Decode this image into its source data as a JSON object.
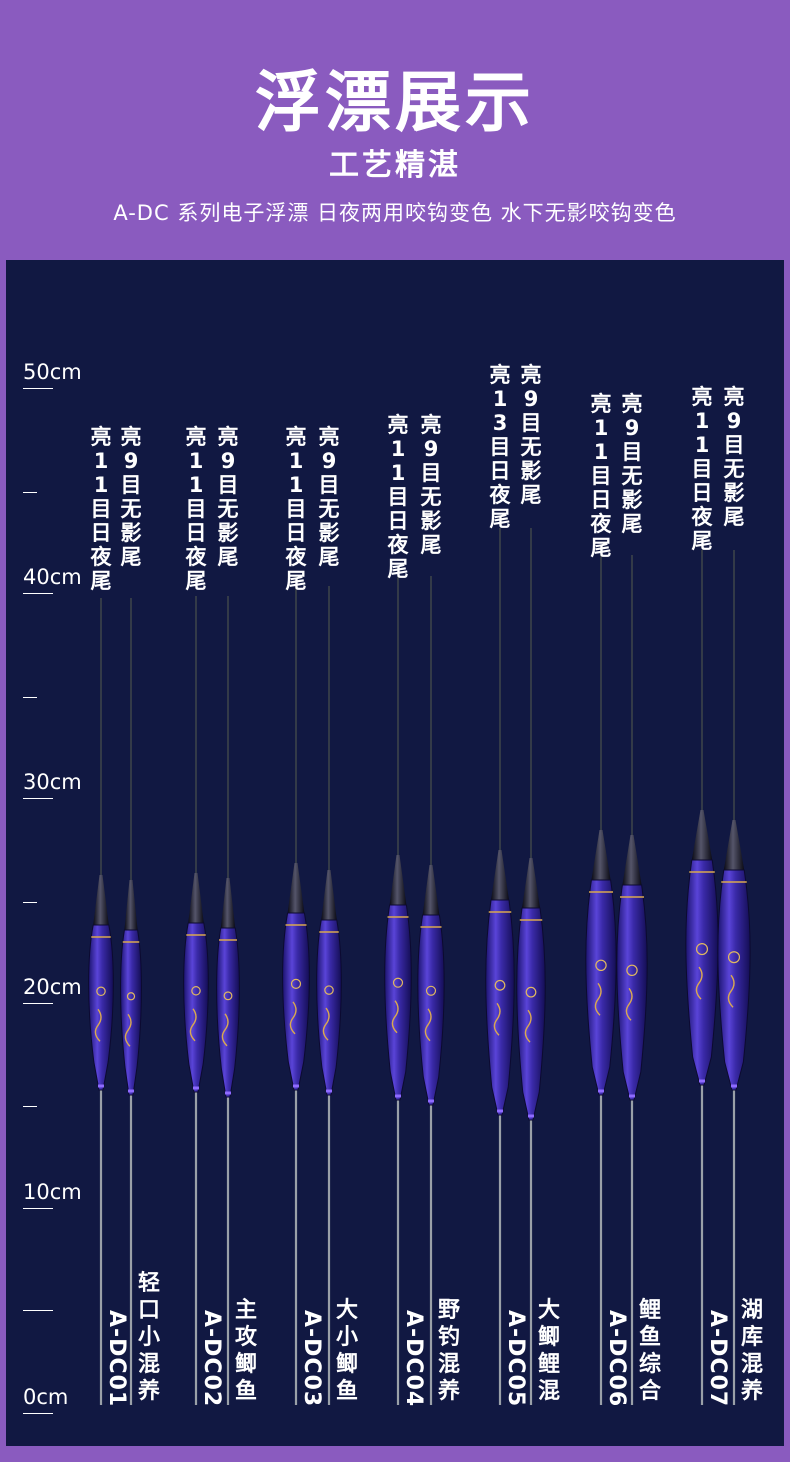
{
  "header": {
    "title": "浮漂展示",
    "subtitle": "工艺精湛",
    "description": "A-DC 系列电子浮漂 日夜两用咬钩变色  水下无影咬钩变色"
  },
  "scale": {
    "labels": [
      "50cm",
      "40cm",
      "30cm",
      "20cm",
      "10cm",
      "0cm"
    ]
  },
  "colors": {
    "background": "#8a5bbf",
    "panel": "#111842",
    "glow_green": "#c8ff3a",
    "glow_orange": "#ff8a2a",
    "body_purple": "#3a2a9e"
  },
  "products": [
    {
      "model": "A-DC01",
      "usage": "轻口小混养",
      "tail_day_night": "亮11目日夜尾",
      "tail_shadowless": "亮9目无影尾"
    },
    {
      "model": "A-DC02",
      "usage": "主攻鲫鱼",
      "tail_day_night": "亮11目日夜尾",
      "tail_shadowless": "亮9目无影尾"
    },
    {
      "model": "A-DC03",
      "usage": "大小鲫鱼",
      "tail_day_night": "亮11目日夜尾",
      "tail_shadowless": "亮9目无影尾"
    },
    {
      "model": "A-DC04",
      "usage": "野钓混养",
      "tail_day_night": "亮11目日夜尾",
      "tail_shadowless": "亮9目无影尾"
    },
    {
      "model": "A-DC05",
      "usage": "大鲫鲤混",
      "tail_day_night": "亮13目日夜尾",
      "tail_shadowless": "亮9目无影尾"
    },
    {
      "model": "A-DC06",
      "usage": "鲤鱼综合",
      "tail_day_night": "亮11目日夜尾",
      "tail_shadowless": "亮9目无影尾"
    },
    {
      "model": "A-DC07",
      "usage": "湖库混养",
      "tail_day_night": "亮11目日夜尾",
      "tail_shadowless": "亮9目无影尾"
    }
  ]
}
